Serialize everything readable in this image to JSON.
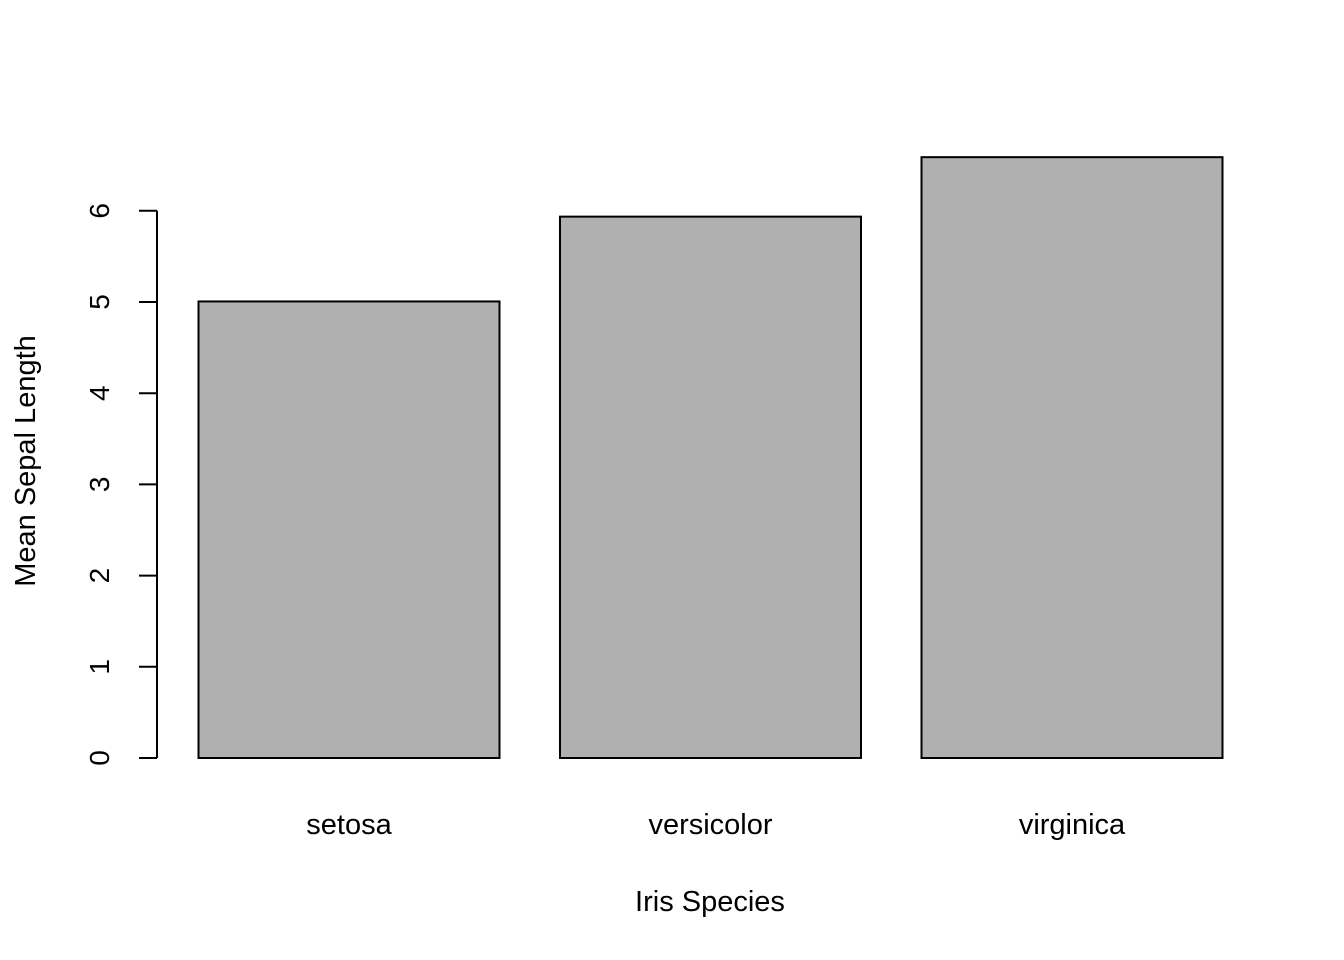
{
  "chart_data": {
    "type": "bar",
    "title": "",
    "xlabel": "Iris Species",
    "ylabel": "Mean Sepal Length",
    "categories": [
      "setosa",
      "versicolor",
      "virginica"
    ],
    "values": [
      5.006,
      5.936,
      6.588
    ],
    "ylim": [
      0,
      6.588
    ],
    "yticks": [
      0,
      1,
      2,
      3,
      4,
      5,
      6
    ],
    "grid": false,
    "legend": "none",
    "bar_color": "#b0b0b0",
    "border_color": "#000000"
  }
}
